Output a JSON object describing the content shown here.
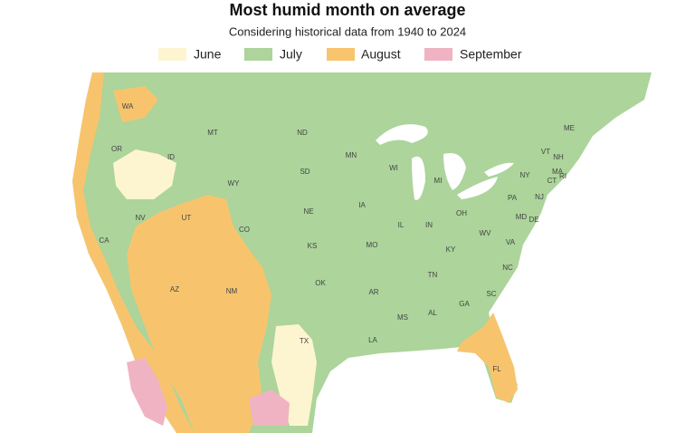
{
  "header": {
    "title": "Most humid month on average",
    "subtitle": "Considering historical data from 1940 to 2024"
  },
  "legend": [
    {
      "label": "June",
      "color": "#fdf5cf"
    },
    {
      "label": "July",
      "color": "#acd49b"
    },
    {
      "label": "August",
      "color": "#f7c46d"
    },
    {
      "label": "September",
      "color": "#f0b3c3"
    }
  ],
  "state_labels": [
    "WA",
    "OR",
    "ID",
    "MT",
    "WY",
    "NV",
    "UT",
    "CO",
    "CA",
    "AZ",
    "NM",
    "ND",
    "SD",
    "NE",
    "KS",
    "OK",
    "TX",
    "MN",
    "IA",
    "MO",
    "AR",
    "LA",
    "WI",
    "IL",
    "MI",
    "IN",
    "OH",
    "KY",
    "TN",
    "MS",
    "AL",
    "GA",
    "FL",
    "SC",
    "NC",
    "VA",
    "WV",
    "PA",
    "NY",
    "VT",
    "NH",
    "ME",
    "MA",
    "CT",
    "RI",
    "NJ",
    "DE",
    "MD"
  ]
}
